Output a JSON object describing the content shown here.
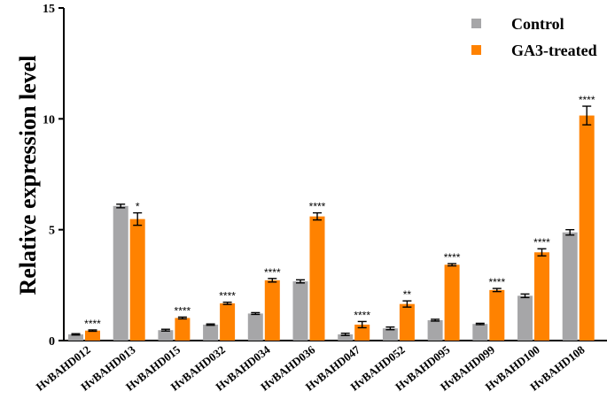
{
  "chart_data": {
    "type": "bar",
    "ylabel": "Relative expression level",
    "xlabel": "",
    "ylim": [
      0,
      15
    ],
    "yticks": [
      0,
      5,
      10,
      15
    ],
    "grid": false,
    "legend_position": "top-right",
    "categories": [
      "HvBAHD012",
      "HvBAHD013",
      "HvBAHD015",
      "HvBAHD032",
      "HvBAHD034",
      "HvBAHD036",
      "HvBAHD047",
      "HvBAHD052",
      "HvBAHD095",
      "HvBAHD099",
      "HvBAHD100",
      "HvBAHD108"
    ],
    "series": [
      {
        "name": "Control",
        "color": "#a6a6a8",
        "values": [
          0.28,
          6.07,
          0.47,
          0.72,
          1.22,
          2.67,
          0.28,
          0.55,
          0.92,
          0.75,
          2.02,
          4.88
        ],
        "errors": [
          0.03,
          0.08,
          0.04,
          0.03,
          0.04,
          0.07,
          0.05,
          0.06,
          0.04,
          0.03,
          0.08,
          0.12
        ]
      },
      {
        "name": "GA3-treated",
        "color": "#ff8200",
        "values": [
          0.45,
          5.48,
          1.02,
          1.68,
          2.72,
          5.6,
          0.72,
          1.65,
          3.42,
          2.28,
          3.98,
          10.15
        ],
        "errors": [
          0.03,
          0.28,
          0.04,
          0.05,
          0.08,
          0.16,
          0.14,
          0.14,
          0.05,
          0.07,
          0.16,
          0.42
        ]
      }
    ],
    "significance": [
      "****",
      "*",
      "****",
      "****",
      "****",
      "****",
      "****",
      "**",
      "****",
      "****",
      "****",
      "****"
    ]
  }
}
